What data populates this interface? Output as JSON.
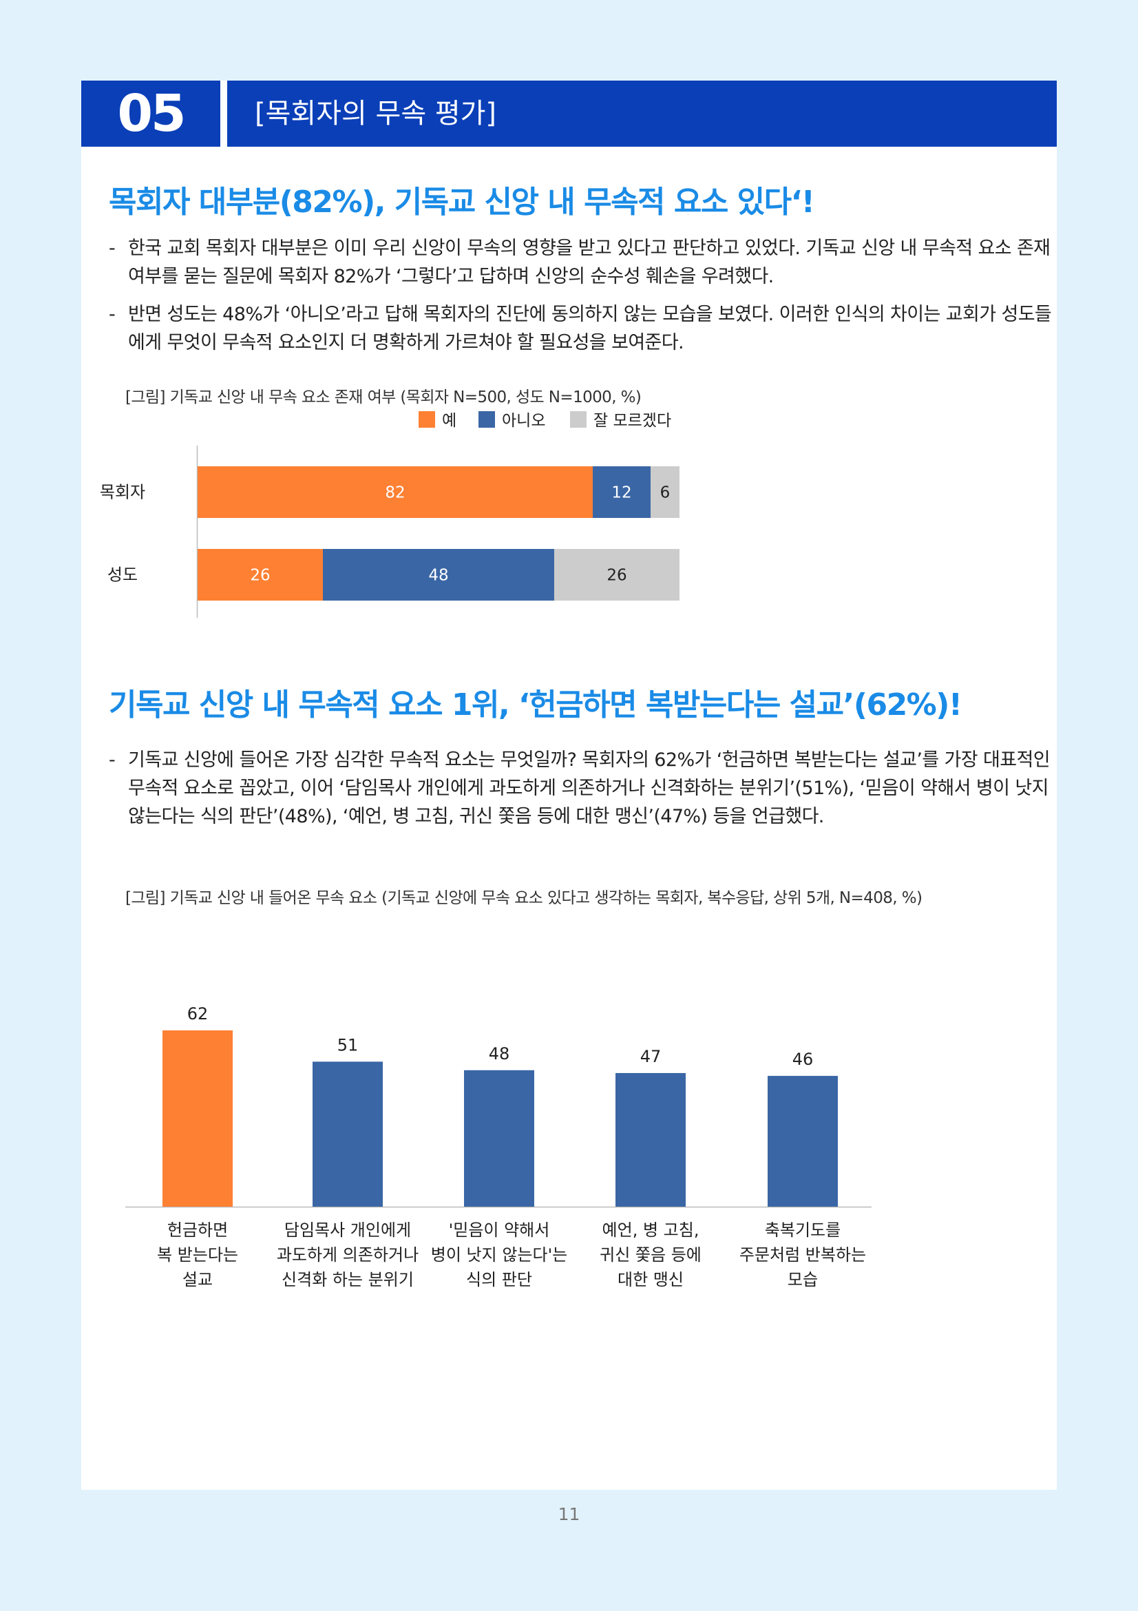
{
  "header": {
    "number": "05",
    "title": "[목회자의 무속 평가]"
  },
  "section1": {
    "heading": "목회자 대부분(82%), 기독교 신앙 내 무속적 요소 있다‘!",
    "bullets": [
      "한국 교회 목회자 대부분은 이미 우리 신앙이 무속의 영향을 받고 있다고 판단하고 있었다. 기독교 신앙 내 무속적 요소 존재 여부를 묻는 질문에 목회자 82%가 ‘그렇다’고 답하며 신앙의 순수성 훼손을 우려했다.",
      "반면 성도는 48%가 ‘아니오’라고 답해 목회자의 진단에 동의하지 않는 모습을 보였다. 이러한 인식의 차이는 교회가 성도들에게 무엇이 무속적 요소인지 더 명확하게 가르쳐야 할 필요성을 보여준다."
    ],
    "caption": "[그림] 기독교 신앙 내 무속 요소 존재 여부 (목회자 N=500, 성도 N=1000, %)"
  },
  "section2": {
    "heading": "기독교 신앙 내 무속적 요소 1위, ‘헌금하면 복받는다는 설교’(62%)!",
    "bullets": [
      "기독교 신앙에 들어온 가장 심각한 무속적 요소는 무엇일까? 목회자의 62%가 ‘헌금하면 복받는다는 설교’를 가장 대표적인 무속적 요소로 꼽았고, 이어 ‘담임목사 개인에게 과도하게 의존하거나 신격화하는 분위기’(51%), ‘믿음이 약해서 병이 낫지 않는다는 식의 판단’(48%), ‘예언, 병 고침, 귀신 쫓음 등에 대한 맹신’(47%) 등을 언급했다."
    ],
    "caption": "[그림] 기독교 신앙 내 들어온 무속 요소 (기독교 신앙에 무속 요소 있다고 생각하는 목회자, 복수응답, 상위 5개, N=408, %)"
  },
  "chart_data": [
    {
      "type": "bar",
      "orientation": "horizontal",
      "stacked": true,
      "categories": [
        "목회자",
        "성도"
      ],
      "series": [
        {
          "name": "예",
          "values": [
            82,
            26
          ],
          "color": "#fd8033"
        },
        {
          "name": "아니오",
          "values": [
            12,
            48
          ],
          "color": "#3a66a5"
        },
        {
          "name": "잘 모르겠다",
          "values": [
            6,
            26
          ],
          "color": "#cccccc"
        }
      ],
      "xlim": [
        0,
        100
      ],
      "legend": "top"
    },
    {
      "type": "bar",
      "orientation": "vertical",
      "categories": [
        [
          "헌금하면",
          "복 받는다는",
          "설교"
        ],
        [
          "담임목사 개인에게",
          "과도하게 의존하거나",
          "신격화 하는 분위기"
        ],
        [
          "'믿음이 약해서",
          "병이 낫지 않는다'는",
          "식의 판단"
        ],
        [
          "예언, 병 고침,",
          "귀신 쫓음 등에",
          "대한 맹신"
        ],
        [
          "축복기도를",
          "주문처럼 반복하는",
          "모습"
        ]
      ],
      "values": [
        62,
        51,
        48,
        47,
        46
      ],
      "colors": [
        "#fd8033",
        "#3a66a5",
        "#3a66a5",
        "#3a66a5",
        "#3a66a5"
      ],
      "ylim": [
        0,
        62
      ]
    }
  ],
  "footer": {
    "page_number": "11"
  }
}
